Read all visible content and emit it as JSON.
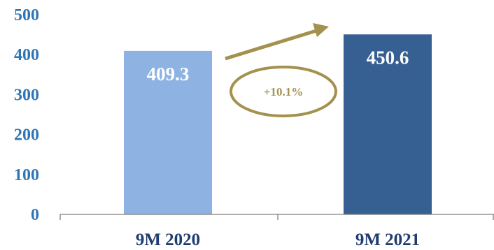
{
  "chart_data": {
    "type": "bar",
    "categories": [
      "9M 2020",
      "9M 2021"
    ],
    "values": [
      409.3,
      450.6
    ],
    "value_labels": [
      "409.3",
      "450.6"
    ],
    "title": "",
    "xlabel": "",
    "ylabel": "",
    "ylim": [
      0,
      500
    ],
    "yticks": [
      0,
      100,
      200,
      300,
      400,
      500
    ],
    "ytick_labels": [
      "0",
      "100",
      "200",
      "300",
      "400",
      "500"
    ],
    "grid": false,
    "legend": "none",
    "annotation": {
      "label": "+10.1%",
      "kind": "growth arrow with ellipse"
    }
  },
  "colors": {
    "bars": [
      "#8eb3e3",
      "#376092"
    ],
    "bar_label": "#ffffff",
    "tick_labels": "#2e75b6",
    "category_labels": "#1f3c6e",
    "annotation": "#a4914e",
    "axis": "#7f7f7f"
  }
}
